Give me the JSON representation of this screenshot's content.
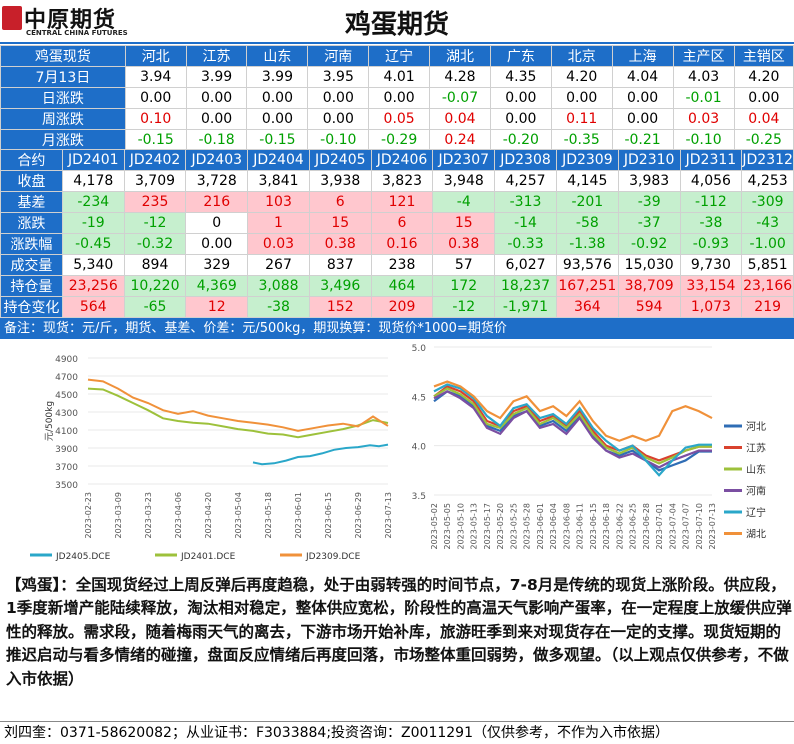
{
  "header": {
    "logo_cn": "中原期货",
    "logo_en": "CENTRAL CHINA FUTURES",
    "title": "鸡蛋期货"
  },
  "spot": {
    "headers": [
      "鸡蛋现货",
      "河北",
      "江苏",
      "山东",
      "河南",
      "辽宁",
      "湖北",
      "广东",
      "北京",
      "上海",
      "主产区",
      "主销区"
    ],
    "rows": [
      {
        "label": "7月13日",
        "cells": [
          {
            "v": "3.94"
          },
          {
            "v": "3.99"
          },
          {
            "v": "3.99"
          },
          {
            "v": "3.95"
          },
          {
            "v": "4.01"
          },
          {
            "v": "4.28"
          },
          {
            "v": "4.35"
          },
          {
            "v": "4.20"
          },
          {
            "v": "4.04"
          },
          {
            "v": "4.03"
          },
          {
            "v": "4.20"
          }
        ]
      },
      {
        "label": "日涨跌",
        "cells": [
          {
            "v": "0.00"
          },
          {
            "v": "0.00"
          },
          {
            "v": "0.00"
          },
          {
            "v": "0.00"
          },
          {
            "v": "0.00"
          },
          {
            "v": "-0.07",
            "c": "g"
          },
          {
            "v": "0.00"
          },
          {
            "v": "0.00"
          },
          {
            "v": "0.00"
          },
          {
            "v": "-0.01",
            "c": "g"
          },
          {
            "v": "0.00"
          }
        ]
      },
      {
        "label": "周涨跌",
        "cells": [
          {
            "v": "0.10",
            "c": "r"
          },
          {
            "v": "0.00"
          },
          {
            "v": "0.00"
          },
          {
            "v": "0.00"
          },
          {
            "v": "0.05",
            "c": "r"
          },
          {
            "v": "0.04",
            "c": "r"
          },
          {
            "v": "0.00"
          },
          {
            "v": "0.11",
            "c": "r"
          },
          {
            "v": "0.00"
          },
          {
            "v": "0.03",
            "c": "r"
          },
          {
            "v": "0.04",
            "c": "r"
          }
        ]
      },
      {
        "label": "月涨跌",
        "cells": [
          {
            "v": "-0.15",
            "c": "g"
          },
          {
            "v": "-0.18",
            "c": "g"
          },
          {
            "v": "-0.15",
            "c": "g"
          },
          {
            "v": "-0.10",
            "c": "g"
          },
          {
            "v": "-0.29",
            "c": "g"
          },
          {
            "v": "0.24",
            "c": "r"
          },
          {
            "v": "-0.20",
            "c": "g"
          },
          {
            "v": "-0.35",
            "c": "g"
          },
          {
            "v": "-0.21",
            "c": "g"
          },
          {
            "v": "-0.10",
            "c": "g"
          },
          {
            "v": "-0.25",
            "c": "g"
          }
        ]
      }
    ]
  },
  "futures": {
    "headers": [
      "合约",
      "JD2401",
      "JD2402",
      "JD2403",
      "JD2404",
      "JD2405",
      "JD2406",
      "JD2307",
      "JD2308",
      "JD2309",
      "JD2310",
      "JD2311",
      "JD2312"
    ],
    "rows": [
      {
        "label": "收盘",
        "cells": [
          {
            "v": "4,178"
          },
          {
            "v": "3,709"
          },
          {
            "v": "3,728"
          },
          {
            "v": "3,841"
          },
          {
            "v": "3,938"
          },
          {
            "v": "3,823"
          },
          {
            "v": "3,948"
          },
          {
            "v": "4,257"
          },
          {
            "v": "4,145"
          },
          {
            "v": "3,983"
          },
          {
            "v": "4,056"
          },
          {
            "v": "4,253"
          }
        ]
      },
      {
        "label": "基差",
        "cells": [
          {
            "v": "-234",
            "c": "G"
          },
          {
            "v": "235",
            "c": "R"
          },
          {
            "v": "216",
            "c": "R"
          },
          {
            "v": "103",
            "c": "R"
          },
          {
            "v": "6",
            "c": "R"
          },
          {
            "v": "121",
            "c": "R"
          },
          {
            "v": "-4",
            "c": "G"
          },
          {
            "v": "-313",
            "c": "G"
          },
          {
            "v": "-201",
            "c": "G"
          },
          {
            "v": "-39",
            "c": "G"
          },
          {
            "v": "-112",
            "c": "G"
          },
          {
            "v": "-309",
            "c": "G"
          }
        ]
      },
      {
        "label": "涨跌",
        "cells": [
          {
            "v": "-19",
            "c": "G"
          },
          {
            "v": "-12",
            "c": "G"
          },
          {
            "v": "0"
          },
          {
            "v": "1",
            "c": "R"
          },
          {
            "v": "15",
            "c": "R"
          },
          {
            "v": "6",
            "c": "R"
          },
          {
            "v": "15",
            "c": "R"
          },
          {
            "v": "-14",
            "c": "G"
          },
          {
            "v": "-58",
            "c": "G"
          },
          {
            "v": "-37",
            "c": "G"
          },
          {
            "v": "-38",
            "c": "G"
          },
          {
            "v": "-43",
            "c": "G"
          }
        ]
      },
      {
        "label": "涨跌幅",
        "cells": [
          {
            "v": "-0.45",
            "c": "G"
          },
          {
            "v": "-0.32",
            "c": "G"
          },
          {
            "v": "0.00"
          },
          {
            "v": "0.03",
            "c": "R"
          },
          {
            "v": "0.38",
            "c": "R"
          },
          {
            "v": "0.16",
            "c": "R"
          },
          {
            "v": "0.38",
            "c": "R"
          },
          {
            "v": "-0.33",
            "c": "G"
          },
          {
            "v": "-1.38",
            "c": "G"
          },
          {
            "v": "-0.92",
            "c": "G"
          },
          {
            "v": "-0.93",
            "c": "G"
          },
          {
            "v": "-1.00",
            "c": "G"
          }
        ]
      },
      {
        "label": "成交量",
        "cells": [
          {
            "v": "5,340"
          },
          {
            "v": "894"
          },
          {
            "v": "329"
          },
          {
            "v": "267"
          },
          {
            "v": "837"
          },
          {
            "v": "238"
          },
          {
            "v": "57"
          },
          {
            "v": "6,027"
          },
          {
            "v": "93,576"
          },
          {
            "v": "15,030"
          },
          {
            "v": "9,730"
          },
          {
            "v": "5,851"
          }
        ]
      },
      {
        "label": "持仓量",
        "cells": [
          {
            "v": "23,256",
            "c": "R"
          },
          {
            "v": "10,220",
            "c": "G"
          },
          {
            "v": "4,369",
            "c": "G"
          },
          {
            "v": "3,088",
            "c": "G"
          },
          {
            "v": "3,496",
            "c": "G"
          },
          {
            "v": "464",
            "c": "G"
          },
          {
            "v": "172",
            "c": "G"
          },
          {
            "v": "18,237",
            "c": "G"
          },
          {
            "v": "167,251",
            "c": "R"
          },
          {
            "v": "38,709",
            "c": "R"
          },
          {
            "v": "33,154",
            "c": "R"
          },
          {
            "v": "23,166",
            "c": "R"
          }
        ]
      },
      {
        "label": "持仓变化",
        "cells": [
          {
            "v": "564",
            "c": "R"
          },
          {
            "v": "-65",
            "c": "G"
          },
          {
            "v": "12",
            "c": "R"
          },
          {
            "v": "-38",
            "c": "G"
          },
          {
            "v": "152",
            "c": "R"
          },
          {
            "v": "209",
            "c": "R"
          },
          {
            "v": "-12",
            "c": "G"
          },
          {
            "v": "-1,971",
            "c": "G"
          },
          {
            "v": "364",
            "c": "R"
          },
          {
            "v": "594",
            "c": "R"
          },
          {
            "v": "1,073",
            "c": "R"
          },
          {
            "v": "219",
            "c": "R"
          }
        ]
      }
    ]
  },
  "note": "备注：现货：元/斤，期货、基差、价差：元/500kg，期现换算：现货价*1000=期货价",
  "chart_data": [
    {
      "type": "line",
      "ylabel": "元/500kg",
      "ylim": [
        3500,
        4900
      ],
      "yticks": [
        3500,
        3700,
        3900,
        4100,
        4300,
        4500,
        4700,
        4900
      ],
      "xticks": [
        "2023-02-23",
        "2023-03-09",
        "2023-03-23",
        "2023-04-06",
        "2023-04-20",
        "2023-05-04",
        "2023-05-18",
        "2023-06-01",
        "2023-06-15",
        "2023-06-29",
        "2023-07-13"
      ],
      "series": [
        {
          "name": "JD2405.DCE",
          "color": "#2aa7c9",
          "x": [
            0.55,
            0.58,
            0.62,
            0.66,
            0.7,
            0.74,
            0.78,
            0.82,
            0.86,
            0.9,
            0.94,
            0.97,
            1.0
          ],
          "values": [
            3740,
            3720,
            3730,
            3760,
            3800,
            3810,
            3840,
            3880,
            3900,
            3910,
            3930,
            3920,
            3938
          ]
        },
        {
          "name": "JD2401.DCE",
          "color": "#9dc13b",
          "x": [
            0,
            0.05,
            0.1,
            0.15,
            0.2,
            0.25,
            0.3,
            0.35,
            0.4,
            0.45,
            0.5,
            0.55,
            0.6,
            0.65,
            0.7,
            0.75,
            0.8,
            0.85,
            0.9,
            0.95,
            1.0
          ],
          "values": [
            4560,
            4550,
            4480,
            4400,
            4320,
            4230,
            4200,
            4180,
            4170,
            4140,
            4110,
            4090,
            4060,
            4050,
            4020,
            4050,
            4080,
            4110,
            4150,
            4210,
            4178
          ]
        },
        {
          "name": "JD2309.DCE",
          "color": "#f0913a",
          "x": [
            0,
            0.05,
            0.1,
            0.15,
            0.2,
            0.25,
            0.3,
            0.35,
            0.4,
            0.45,
            0.5,
            0.55,
            0.6,
            0.65,
            0.7,
            0.75,
            0.8,
            0.85,
            0.9,
            0.95,
            1.0
          ],
          "values": [
            4660,
            4640,
            4560,
            4460,
            4400,
            4320,
            4280,
            4310,
            4260,
            4230,
            4200,
            4180,
            4160,
            4130,
            4090,
            4120,
            4150,
            4170,
            4140,
            4250,
            4145
          ]
        }
      ]
    },
    {
      "type": "line",
      "ylim": [
        3.5,
        5.0
      ],
      "yticks": [
        "3.5",
        "4.0",
        "4.5",
        "5.0"
      ],
      "xticks": [
        "2023-05-02",
        "2023-05-05",
        "2023-05-10",
        "2023-05-13",
        "2023-05-17",
        "2023-05-20",
        "2023-05-25",
        "2023-05-28",
        "2023-06-01",
        "2023-06-04",
        "2023-06-08",
        "2023-06-11",
        "2023-06-15",
        "2023-06-18",
        "2023-06-22",
        "2023-06-25",
        "2023-06-28",
        "2023-07-01",
        "2023-07-04",
        "2023-07-07",
        "2023-07-10",
        "2023-07-13"
      ],
      "series": [
        {
          "name": "河北",
          "color": "#2f6db5",
          "values": [
            4.45,
            4.55,
            4.5,
            4.4,
            4.2,
            4.15,
            4.3,
            4.35,
            4.2,
            4.25,
            4.15,
            4.3,
            4.1,
            3.95,
            3.9,
            3.95,
            3.85,
            3.75,
            3.8,
            3.85,
            3.94,
            3.94
          ]
        },
        {
          "name": "江苏",
          "color": "#d9422e",
          "values": [
            4.5,
            4.6,
            4.55,
            4.45,
            4.25,
            4.2,
            4.35,
            4.4,
            4.25,
            4.3,
            4.2,
            4.35,
            4.15,
            4.0,
            3.95,
            4.0,
            3.9,
            3.85,
            3.9,
            3.95,
            3.99,
            3.99
          ]
        },
        {
          "name": "山东",
          "color": "#9dc13b",
          "values": [
            4.5,
            4.58,
            4.52,
            4.42,
            4.22,
            4.18,
            4.32,
            4.38,
            4.22,
            4.28,
            4.18,
            4.32,
            4.12,
            3.98,
            3.92,
            3.98,
            3.88,
            3.82,
            3.88,
            3.95,
            3.99,
            3.99
          ]
        },
        {
          "name": "河南",
          "color": "#7b4fa2",
          "values": [
            4.48,
            4.55,
            4.48,
            4.38,
            4.18,
            4.12,
            4.28,
            4.35,
            4.18,
            4.22,
            4.12,
            4.28,
            4.08,
            3.95,
            3.88,
            3.92,
            3.85,
            3.78,
            3.85,
            3.9,
            3.95,
            3.95
          ]
        },
        {
          "name": "辽宁",
          "color": "#2aa7c9",
          "values": [
            4.55,
            4.62,
            4.58,
            4.48,
            4.3,
            4.2,
            4.38,
            4.42,
            4.28,
            4.32,
            4.22,
            4.38,
            4.18,
            4.05,
            3.95,
            4.0,
            3.85,
            3.7,
            3.85,
            3.98,
            4.01,
            4.01
          ]
        },
        {
          "name": "湖北",
          "color": "#f0913a",
          "values": [
            4.6,
            4.65,
            4.6,
            4.5,
            4.35,
            4.28,
            4.45,
            4.5,
            4.35,
            4.4,
            4.3,
            4.45,
            4.25,
            4.1,
            4.05,
            4.1,
            4.05,
            4.1,
            4.35,
            4.4,
            4.35,
            4.28
          ]
        }
      ]
    }
  ],
  "commentary": "【鸡蛋】：全国现货经过上周反弹后再度趋稳，处于由弱转强的时间节点，7-8月是传统的现货上涨阶段。供应段，1季度新增产能陆续释放，淘汰相对稳定，整体供应宽松，阶段性的高温天气影响产蛋率，在一定程度上放缓供应弹性的释放。需求段，随着梅雨天气的离去，下游市场开始补库，旅游旺季到来对现货存在一定的支撑。现货短期的推迟启动与看多情绪的碰撞，盘面反应情绪后再度回落，市场整体重回弱势，做多观望。（以上观点仅供参考，不做入市依据）",
  "footer": "刘四奎：0371-58620082；从业证书：F3033884;投资咨询：Z0011291（仅供参考，不作为入市依据）"
}
